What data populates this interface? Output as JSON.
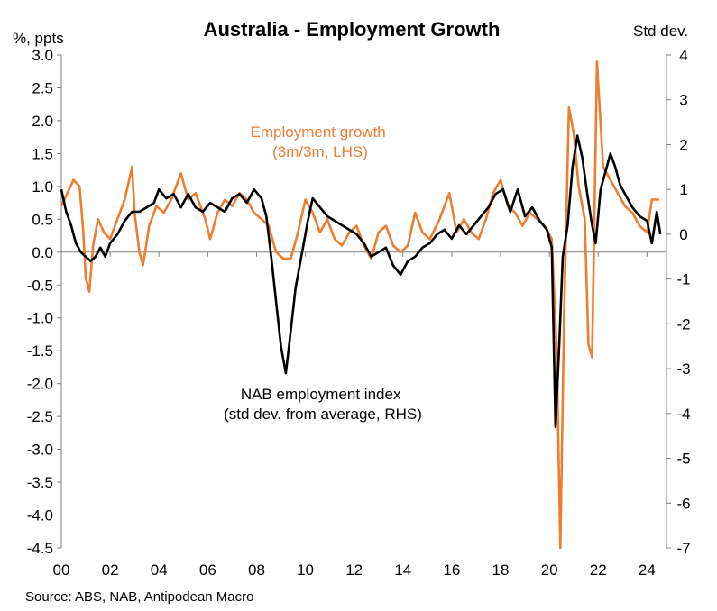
{
  "chart_data": {
    "type": "line",
    "title": "Australia - Employment Growth",
    "left_axis_unit": "%, ppts",
    "right_axis_unit": "Std dev.",
    "source": "Source: ABS, NAB, Antipodean Macro",
    "x_ticks": [
      "00",
      "02",
      "04",
      "06",
      "08",
      "10",
      "12",
      "14",
      "16",
      "18",
      "20",
      "22",
      "24"
    ],
    "xlim": [
      2000,
      2024.8
    ],
    "ylim_left": [
      -4.5,
      3.0
    ],
    "ylim_right": [
      -7,
      4
    ],
    "y_left_ticks": [
      "3.0",
      "2.5",
      "2.0",
      "1.5",
      "1.0",
      "0.5",
      "0.0",
      "-0.5",
      "-1.0",
      "-1.5",
      "-2.0",
      "-2.5",
      "-3.0",
      "-3.5",
      "-4.0",
      "-4.5"
    ],
    "y_right_ticks": [
      "4",
      "3",
      "2",
      "1",
      "0",
      "-1",
      "-2",
      "-3",
      "-4",
      "-5",
      "-6",
      "-7"
    ],
    "colors": {
      "employment_growth": "#ED7D31",
      "nab_index": "#000000"
    },
    "annotations": {
      "employment": [
        "Employment growth",
        "(3m/3m, LHS)"
      ],
      "nab": [
        "NAB employment index",
        "(std dev. from average, RHS)"
      ]
    },
    "series": [
      {
        "name": "Employment growth",
        "axis": "left",
        "points": [
          [
            2000.0,
            0.7
          ],
          [
            2000.25,
            0.9
          ],
          [
            2000.5,
            1.1
          ],
          [
            2000.75,
            1.0
          ],
          [
            2000.9,
            0.3
          ],
          [
            2001.0,
            -0.4
          ],
          [
            2001.15,
            -0.6
          ],
          [
            2001.3,
            0.1
          ],
          [
            2001.5,
            0.5
          ],
          [
            2001.75,
            0.3
          ],
          [
            2002.0,
            0.2
          ],
          [
            2002.3,
            0.5
          ],
          [
            2002.6,
            0.8
          ],
          [
            2002.9,
            1.3
          ],
          [
            2003.0,
            0.6
          ],
          [
            2003.2,
            0.0
          ],
          [
            2003.35,
            -0.2
          ],
          [
            2003.6,
            0.4
          ],
          [
            2003.9,
            0.7
          ],
          [
            2004.2,
            0.6
          ],
          [
            2004.5,
            0.8
          ],
          [
            2004.9,
            1.2
          ],
          [
            2005.2,
            0.8
          ],
          [
            2005.5,
            0.9
          ],
          [
            2005.9,
            0.5
          ],
          [
            2006.1,
            0.2
          ],
          [
            2006.4,
            0.6
          ],
          [
            2006.7,
            0.8
          ],
          [
            2007.0,
            0.7
          ],
          [
            2007.3,
            0.9
          ],
          [
            2007.6,
            0.8
          ],
          [
            2007.9,
            0.6
          ],
          [
            2008.2,
            0.5
          ],
          [
            2008.5,
            0.4
          ],
          [
            2008.8,
            0.0
          ],
          [
            2009.1,
            -0.1
          ],
          [
            2009.4,
            -0.1
          ],
          [
            2009.7,
            0.3
          ],
          [
            2010.0,
            0.8
          ],
          [
            2010.3,
            0.6
          ],
          [
            2010.6,
            0.3
          ],
          [
            2010.9,
            0.5
          ],
          [
            2011.2,
            0.2
          ],
          [
            2011.5,
            0.1
          ],
          [
            2011.8,
            0.3
          ],
          [
            2012.1,
            0.4
          ],
          [
            2012.4,
            0.1
          ],
          [
            2012.7,
            -0.1
          ],
          [
            2013.0,
            0.3
          ],
          [
            2013.3,
            0.4
          ],
          [
            2013.6,
            0.1
          ],
          [
            2013.9,
            0.0
          ],
          [
            2014.2,
            0.1
          ],
          [
            2014.5,
            0.6
          ],
          [
            2014.8,
            0.3
          ],
          [
            2015.1,
            0.2
          ],
          [
            2015.5,
            0.5
          ],
          [
            2015.9,
            0.9
          ],
          [
            2016.2,
            0.3
          ],
          [
            2016.5,
            0.5
          ],
          [
            2016.8,
            0.3
          ],
          [
            2017.1,
            0.2
          ],
          [
            2017.4,
            0.5
          ],
          [
            2017.7,
            0.9
          ],
          [
            2018.0,
            1.1
          ],
          [
            2018.3,
            0.7
          ],
          [
            2018.6,
            0.6
          ],
          [
            2018.9,
            0.4
          ],
          [
            2019.2,
            0.6
          ],
          [
            2019.5,
            0.5
          ],
          [
            2019.8,
            0.4
          ],
          [
            2020.1,
            0.2
          ],
          [
            2020.3,
            -1.5
          ],
          [
            2020.45,
            -4.5
          ],
          [
            2020.6,
            -1.0
          ],
          [
            2020.8,
            2.2
          ],
          [
            2021.0,
            1.8
          ],
          [
            2021.2,
            1.0
          ],
          [
            2021.45,
            0.5
          ],
          [
            2021.6,
            -1.4
          ],
          [
            2021.75,
            -1.6
          ],
          [
            2021.95,
            2.9
          ],
          [
            2022.2,
            1.3
          ],
          [
            2022.5,
            1.1
          ],
          [
            2022.8,
            0.9
          ],
          [
            2023.1,
            0.7
          ],
          [
            2023.4,
            0.6
          ],
          [
            2023.7,
            0.4
          ],
          [
            2024.0,
            0.3
          ],
          [
            2024.2,
            0.8
          ],
          [
            2024.5,
            0.8
          ]
        ]
      },
      {
        "name": "NAB employment index",
        "axis": "right",
        "points": [
          [
            2000.0,
            1.0
          ],
          [
            2000.2,
            0.5
          ],
          [
            2000.4,
            0.2
          ],
          [
            2000.6,
            -0.2
          ],
          [
            2000.8,
            -0.4
          ],
          [
            2001.0,
            -0.5
          ],
          [
            2001.2,
            -0.6
          ],
          [
            2001.4,
            -0.5
          ],
          [
            2001.6,
            -0.3
          ],
          [
            2001.8,
            -0.5
          ],
          [
            2002.0,
            -0.2
          ],
          [
            2002.3,
            0.0
          ],
          [
            2002.6,
            0.3
          ],
          [
            2002.9,
            0.5
          ],
          [
            2003.2,
            0.5
          ],
          [
            2003.5,
            0.6
          ],
          [
            2003.8,
            0.7
          ],
          [
            2004.0,
            1.0
          ],
          [
            2004.3,
            0.8
          ],
          [
            2004.6,
            0.9
          ],
          [
            2004.9,
            0.6
          ],
          [
            2005.2,
            0.9
          ],
          [
            2005.5,
            0.6
          ],
          [
            2005.8,
            0.5
          ],
          [
            2006.1,
            0.7
          ],
          [
            2006.4,
            0.6
          ],
          [
            2006.7,
            0.5
          ],
          [
            2007.0,
            0.8
          ],
          [
            2007.3,
            0.9
          ],
          [
            2007.6,
            0.7
          ],
          [
            2007.9,
            1.0
          ],
          [
            2008.2,
            0.8
          ],
          [
            2008.4,
            0.4
          ],
          [
            2008.6,
            -0.5
          ],
          [
            2008.8,
            -1.5
          ],
          [
            2009.0,
            -2.5
          ],
          [
            2009.2,
            -3.1
          ],
          [
            2009.35,
            -2.4
          ],
          [
            2009.6,
            -1.2
          ],
          [
            2009.9,
            -0.3
          ],
          [
            2010.1,
            0.3
          ],
          [
            2010.3,
            0.8
          ],
          [
            2010.6,
            0.6
          ],
          [
            2010.9,
            0.4
          ],
          [
            2011.2,
            0.3
          ],
          [
            2011.5,
            0.2
          ],
          [
            2011.8,
            0.1
          ],
          [
            2012.1,
            0.0
          ],
          [
            2012.4,
            -0.2
          ],
          [
            2012.7,
            -0.5
          ],
          [
            2013.0,
            -0.4
          ],
          [
            2013.3,
            -0.3
          ],
          [
            2013.6,
            -0.7
          ],
          [
            2013.9,
            -0.9
          ],
          [
            2014.2,
            -0.6
          ],
          [
            2014.5,
            -0.5
          ],
          [
            2014.8,
            -0.3
          ],
          [
            2015.1,
            -0.2
          ],
          [
            2015.4,
            0.0
          ],
          [
            2015.7,
            0.1
          ],
          [
            2016.0,
            -0.1
          ],
          [
            2016.3,
            0.2
          ],
          [
            2016.6,
            0.0
          ],
          [
            2016.9,
            0.2
          ],
          [
            2017.2,
            0.4
          ],
          [
            2017.5,
            0.6
          ],
          [
            2017.8,
            0.9
          ],
          [
            2018.1,
            1.0
          ],
          [
            2018.4,
            0.5
          ],
          [
            2018.7,
            1.0
          ],
          [
            2019.0,
            0.4
          ],
          [
            2019.3,
            0.6
          ],
          [
            2019.6,
            0.3
          ],
          [
            2019.9,
            0.1
          ],
          [
            2020.1,
            -0.3
          ],
          [
            2020.25,
            -4.3
          ],
          [
            2020.4,
            -2.5
          ],
          [
            2020.55,
            -0.5
          ],
          [
            2020.75,
            0.2
          ],
          [
            2020.95,
            1.5
          ],
          [
            2021.15,
            2.2
          ],
          [
            2021.35,
            1.7
          ],
          [
            2021.55,
            0.9
          ],
          [
            2021.75,
            0.2
          ],
          [
            2021.9,
            -0.2
          ],
          [
            2022.1,
            1.0
          ],
          [
            2022.3,
            1.4
          ],
          [
            2022.5,
            1.8
          ],
          [
            2022.7,
            1.5
          ],
          [
            2022.9,
            1.1
          ],
          [
            2023.1,
            0.9
          ],
          [
            2023.4,
            0.6
          ],
          [
            2023.7,
            0.4
          ],
          [
            2024.0,
            0.3
          ],
          [
            2024.2,
            -0.2
          ],
          [
            2024.4,
            0.5
          ],
          [
            2024.55,
            0.0
          ]
        ]
      }
    ]
  }
}
